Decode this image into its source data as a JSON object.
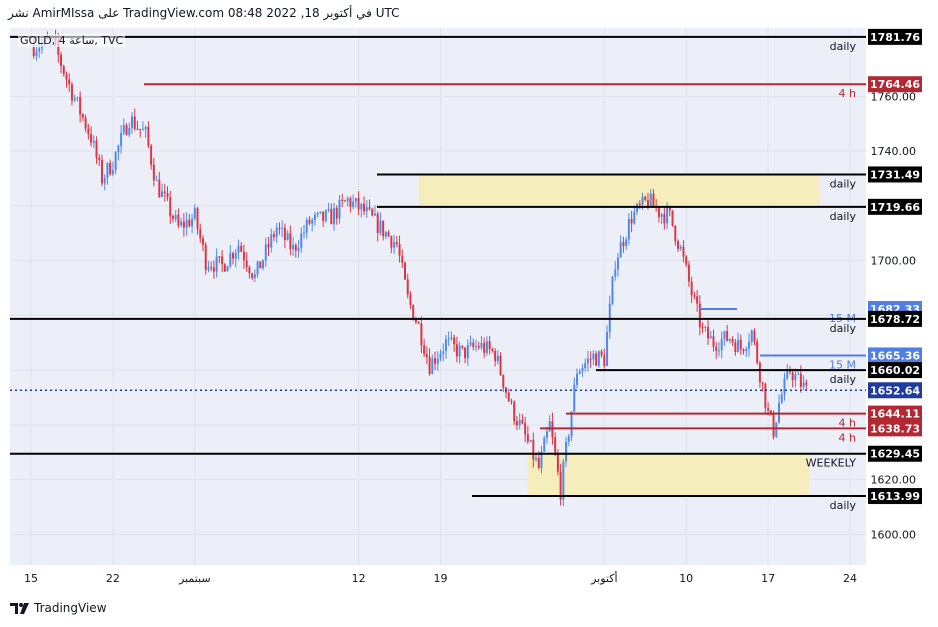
{
  "header": {
    "text": "نشر AmirMIssa على TradingView.com 08:48 2022 ,18 في أكتوبر UTC"
  },
  "symbol_line": "GOLD, ساعة 4, TVC",
  "footer": {
    "brand": "TradingView"
  },
  "colors": {
    "background": "#eceff8",
    "up_candle": "#4f8ae8",
    "down_candle": "#dc3545",
    "daily_line": "#000000",
    "h4_line": "#b22833",
    "m15_line": "#4f7ee6",
    "zone_fill": "#f5eebc",
    "current_price": "#1f3b9c"
  },
  "chart_data": {
    "type": "candlestick",
    "symbol": "GOLD",
    "timeframe": "4 h",
    "source": "TVC",
    "ylim": [
      1588.8,
      1785
    ],
    "y_ticks": [
      1600,
      1620,
      1640,
      1660,
      1680,
      1700,
      1720,
      1740,
      1760
    ],
    "x_ticks": [
      {
        "label": "15",
        "bar": 0
      },
      {
        "label": "22",
        "bar": 30
      },
      {
        "label": "سبتمبر",
        "bar": 60
      },
      {
        "label": "12",
        "bar": 120
      },
      {
        "label": "19",
        "bar": 150
      },
      {
        "label": "أكتوبر",
        "bar": 210
      },
      {
        "label": "10",
        "bar": 240
      },
      {
        "label": "17",
        "bar": 270
      },
      {
        "label": "24",
        "bar": 300
      }
    ],
    "current_price": 1652.64,
    "price_path": [
      [
        0,
        1778
      ],
      [
        8,
        1780
      ],
      [
        14,
        1764
      ],
      [
        22,
        1745
      ],
      [
        26,
        1730
      ],
      [
        30,
        1736
      ],
      [
        36,
        1752
      ],
      [
        42,
        1746
      ],
      [
        46,
        1728
      ],
      [
        54,
        1712
      ],
      [
        60,
        1716
      ],
      [
        64,
        1700
      ],
      [
        70,
        1698
      ],
      [
        76,
        1706
      ],
      [
        82,
        1694
      ],
      [
        90,
        1712
      ],
      [
        96,
        1704
      ],
      [
        102,
        1714
      ],
      [
        110,
        1716
      ],
      [
        116,
        1722
      ],
      [
        122,
        1718
      ],
      [
        128,
        1712
      ],
      [
        134,
        1706
      ],
      [
        138,
        1686
      ],
      [
        142,
        1676
      ],
      [
        146,
        1662
      ],
      [
        152,
        1670
      ],
      [
        158,
        1666
      ],
      [
        164,
        1669
      ],
      [
        170,
        1666
      ],
      [
        176,
        1646
      ],
      [
        180,
        1638
      ],
      [
        186,
        1624
      ],
      [
        190,
        1640
      ],
      [
        194,
        1616
      ],
      [
        200,
        1660
      ],
      [
        206,
        1665
      ],
      [
        210,
        1664
      ],
      [
        214,
        1700
      ],
      [
        220,
        1716
      ],
      [
        226,
        1722
      ],
      [
        230,
        1718
      ],
      [
        234,
        1716
      ],
      [
        238,
        1704
      ],
      [
        242,
        1688
      ],
      [
        246,
        1674
      ],
      [
        250,
        1670
      ],
      [
        256,
        1672
      ],
      [
        260,
        1668
      ],
      [
        264,
        1674
      ],
      [
        266,
        1664
      ],
      [
        270,
        1644
      ],
      [
        272,
        1638
      ],
      [
        274,
        1648
      ],
      [
        278,
        1660
      ],
      [
        282,
        1655
      ],
      [
        284,
        1652.64
      ]
    ],
    "levels": [
      {
        "price": 1781.76,
        "label": "1781.76",
        "tf": "daily",
        "kind": "daily"
      },
      {
        "price": 1764.46,
        "label": "1764.46",
        "tf": "4 h",
        "kind": "h4"
      },
      {
        "price": 1731.49,
        "label": "1731.49",
        "tf": "daily",
        "kind": "daily"
      },
      {
        "price": 1719.66,
        "label": "1719.66",
        "tf": "daily",
        "kind": "daily"
      },
      {
        "price": 1682.33,
        "label": "1682.33",
        "tf": "15 M",
        "kind": "m15"
      },
      {
        "price": 1678.72,
        "label": "1678.72",
        "tf": "daily",
        "kind": "daily"
      },
      {
        "price": 1665.36,
        "label": "1665.36",
        "tf": "15 M",
        "kind": "m15"
      },
      {
        "price": 1660.02,
        "label": "1660.02",
        "tf": "daily",
        "kind": "daily"
      },
      {
        "price": 1652.64,
        "label": "1652.64",
        "tf": "",
        "kind": "current"
      },
      {
        "price": 1644.11,
        "label": "1644.11",
        "tf": "4 h",
        "kind": "h4"
      },
      {
        "price": 1638.73,
        "label": "1638.73",
        "tf": "4 h",
        "kind": "h4"
      },
      {
        "price": 1629.45,
        "label": "1629.45",
        "tf": "WEEKELY",
        "kind": "weekly"
      },
      {
        "price": 1613.99,
        "label": "1613.99",
        "tf": "daily",
        "kind": "daily"
      }
    ],
    "zones": [
      {
        "from": 1719.66,
        "to": 1731.49,
        "start_bar": 142,
        "end_bar": 289
      },
      {
        "from": 1613.99,
        "to": 1629.45,
        "start_bar": 182,
        "end_bar": 285
      }
    ]
  }
}
